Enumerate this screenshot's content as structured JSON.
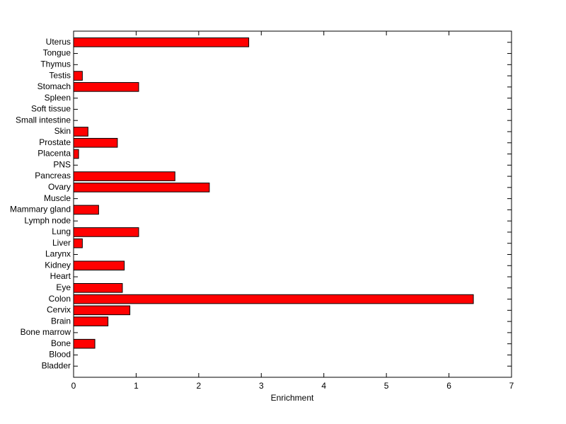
{
  "chart_data": {
    "type": "barh",
    "xlabel": "Enrichment",
    "categories": [
      "Bladder",
      "Blood",
      "Bone",
      "Bone marrow",
      "Brain",
      "Cervix",
      "Colon",
      "Eye",
      "Heart",
      "Kidney",
      "Larynx",
      "Liver",
      "Lung",
      "Lymph node",
      "Mammary gland",
      "Muscle",
      "Ovary",
      "Pancreas",
      "PNS",
      "Placenta",
      "Prostate",
      "Skin",
      "Small intestine",
      "Soft tissue",
      "Spleen",
      "Stomach",
      "Testis",
      "Thymus",
      "Tongue",
      "Uterus"
    ],
    "values": [
      0,
      0,
      0.34,
      0,
      0.55,
      0.9,
      6.39,
      0.78,
      0,
      0.81,
      0,
      0.14,
      1.04,
      0,
      0.4,
      0,
      2.17,
      1.62,
      0,
      0.08,
      0.7,
      0.23,
      0,
      0,
      0,
      1.04,
      0.14,
      0,
      0,
      2.8
    ],
    "color": "#ff0000",
    "xlim": [
      0,
      7
    ],
    "xticks": [
      0,
      1,
      2,
      3,
      4,
      5,
      6,
      7
    ]
  }
}
